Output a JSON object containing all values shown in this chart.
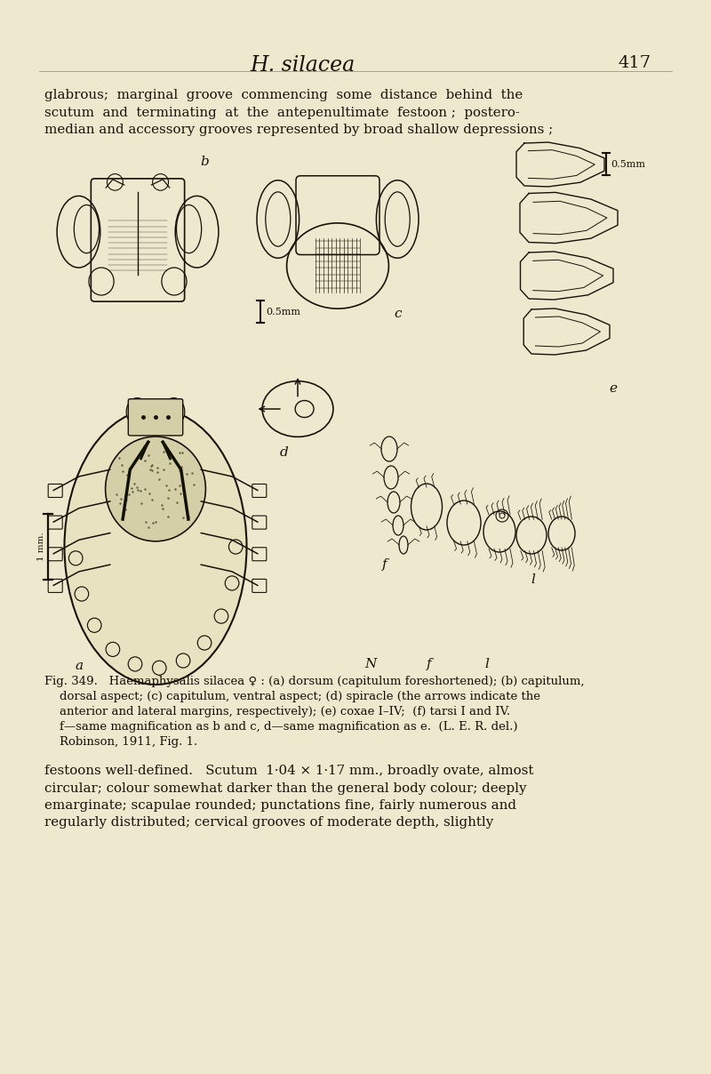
{
  "bg_color": "#ede8ce",
  "title_italic": "H. silacea",
  "page_number": "417",
  "top_text_lines": [
    "glabrous;  marginal  groove  commencing  some  distance  behind  the",
    "scutum  and  terminating  at  the  antepenultimate  festoon ;  postero-",
    "median and accessory grooves represented by broad shallow depressions ;"
  ],
  "label_a": "a",
  "label_b": "b",
  "label_c": "c",
  "label_d": "d",
  "label_e": "e",
  "label_f": "f",
  "label_N": "N",
  "label_l": "l",
  "scale_05mm": "0.5mm",
  "scale_05mm2": "0.5mm",
  "caption_line1": "Fig. 349.   Haemaphysalis silacea ♀ : (a) dorsum (capitulum foreshortened); (b) capitulum,",
  "caption_line2": "    dorsal aspect; (c) capitulum, ventral aspect; (d) spiracle (the arrows indicate the",
  "caption_line3": "    anterior and lateral margins, respectively); (e) coxae I–IV;  (f) tarsi I and IV.",
  "caption_line4": "    f—same magnification as b and c, d—same magnification as e.  (L. E. R. del.)",
  "caption_line5": "    Robinson, 1911, Fig. 1.",
  "bottom_lines": [
    "festoons well-defined.   Scutum  1·04 × 1·17 mm., broadly ovate, almost",
    "circular; colour somewhat darker than the general body colour; deeply",
    "emarginate; scapulae rounded; punctations fine, fairly numerous and",
    "regularly distributed; cervical grooves of moderate depth, slightly"
  ]
}
